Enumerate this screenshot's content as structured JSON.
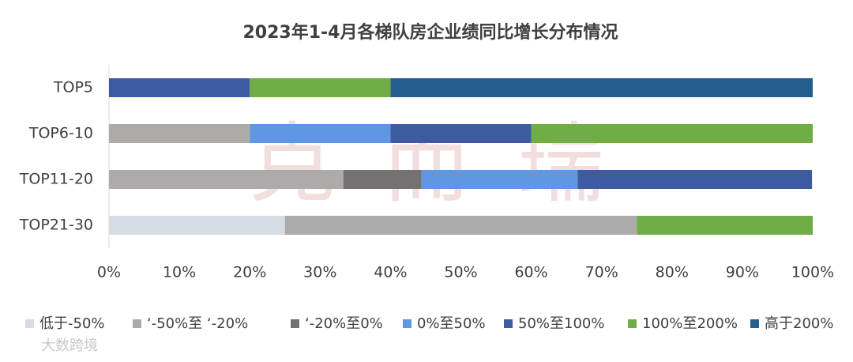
{
  "chart_data": {
    "type": "stacked-barh",
    "title": "2023年1-4月各梯队房企业绩同比增长分布情况",
    "categories": [
      "TOP5",
      "TOP6-10",
      "TOP11-20",
      "TOP21-30"
    ],
    "series": [
      {
        "name": "低于-50%",
        "color": "#d6dce4",
        "values": [
          0,
          0,
          0,
          25
        ]
      },
      {
        "name": "‘-50%至 ‘-20%",
        "color": "#aeaaaa",
        "values": [
          0,
          20,
          33.3,
          50
        ]
      },
      {
        "name": "‘-20%至0%",
        "color": "#767171",
        "values": [
          0,
          0,
          11.1,
          0
        ]
      },
      {
        "name": "0%至50%",
        "color": "#5f97e3",
        "values": [
          0,
          20,
          22.2,
          0
        ]
      },
      {
        "name": "50%至100%",
        "color": "#3e5ba1",
        "values": [
          20,
          20,
          33.3,
          0
        ]
      },
      {
        "name": "100%至200%",
        "color": "#70ad47",
        "values": [
          20,
          40,
          0,
          25
        ]
      },
      {
        "name": "高于200%",
        "color": "#255e91",
        "values": [
          60,
          0,
          0,
          0
        ]
      }
    ],
    "xlim": [
      0,
      100
    ],
    "xticks": [
      {
        "value": 0,
        "label": "0%"
      },
      {
        "value": 10,
        "label": "10%"
      },
      {
        "value": 20,
        "label": "20%"
      },
      {
        "value": 30,
        "label": "30%"
      },
      {
        "value": 40,
        "label": "40%"
      },
      {
        "value": 50,
        "label": "50%"
      },
      {
        "value": 60,
        "label": "60%"
      },
      {
        "value": 70,
        "label": "70%"
      },
      {
        "value": 80,
        "label": "80%"
      },
      {
        "value": 90,
        "label": "90%"
      },
      {
        "value": 100,
        "label": "100%"
      }
    ],
    "legend": "bottom",
    "watermark": "克而瑞",
    "source": "大数跨境"
  }
}
